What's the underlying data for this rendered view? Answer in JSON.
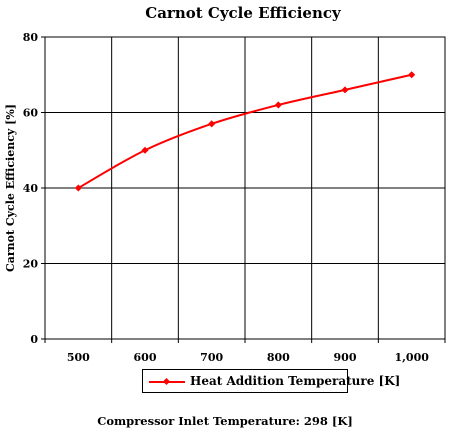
{
  "chart_data": {
    "type": "line",
    "title": "Carnot Cycle Efficiency",
    "xlabel": "",
    "ylabel": "Carnot Cycle Efficiency [%]",
    "categories": [
      "500",
      "600",
      "700",
      "800",
      "900",
      "1,000"
    ],
    "series": [
      {
        "name": "Heat Addition Temperature [K]",
        "values": [
          40,
          50,
          57,
          62,
          66,
          70
        ],
        "color": "#ff0000"
      }
    ],
    "ylim": [
      0,
      80
    ],
    "yticks": [
      0,
      20,
      40,
      60,
      80
    ],
    "grid": true,
    "legend_position": "bottom",
    "footnote": "Compressor Inlet Temperature:  298 [K]"
  }
}
